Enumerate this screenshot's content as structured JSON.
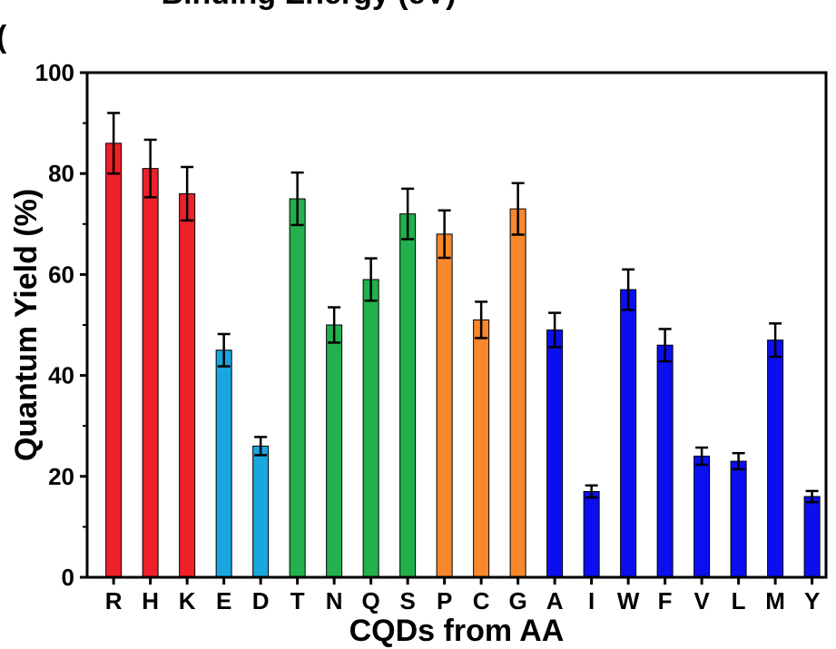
{
  "panel_label": "(",
  "cut_title": "Binding Energy (eV)",
  "chart_data": {
    "type": "bar",
    "xlabel": "CQDs from AA",
    "ylabel": "Quantum Yield (%)",
    "ylim": [
      0,
      100
    ],
    "yticks": [
      0,
      20,
      40,
      60,
      80,
      100
    ],
    "grid": false,
    "legend": "none",
    "categories": [
      "R",
      "H",
      "K",
      "E",
      "D",
      "T",
      "N",
      "Q",
      "S",
      "P",
      "C",
      "G",
      "A",
      "I",
      "W",
      "F",
      "V",
      "L",
      "M",
      "Y"
    ],
    "values": [
      86,
      81,
      76,
      45,
      26,
      75,
      50,
      59,
      72,
      68,
      51,
      73,
      49,
      17,
      57,
      46,
      24,
      23,
      47,
      16
    ],
    "errors": [
      6,
      5.7,
      5.3,
      3.2,
      1.8,
      5.2,
      3.5,
      4.2,
      5,
      4.7,
      3.6,
      5.1,
      3.4,
      1.2,
      4,
      3.2,
      1.7,
      1.6,
      3.3,
      1.1
    ],
    "colors": [
      "#ee2029",
      "#ee2029",
      "#ee2029",
      "#1aa6df",
      "#1aa6df",
      "#22b14c",
      "#22b14c",
      "#22b14c",
      "#22b14c",
      "#f7882b",
      "#f7882b",
      "#f7882b",
      "#0b0ff0",
      "#0b0ff0",
      "#0b0ff0",
      "#0b0ff0",
      "#0b0ff0",
      "#0b0ff0",
      "#0b0ff0",
      "#0b0ff0"
    ]
  }
}
